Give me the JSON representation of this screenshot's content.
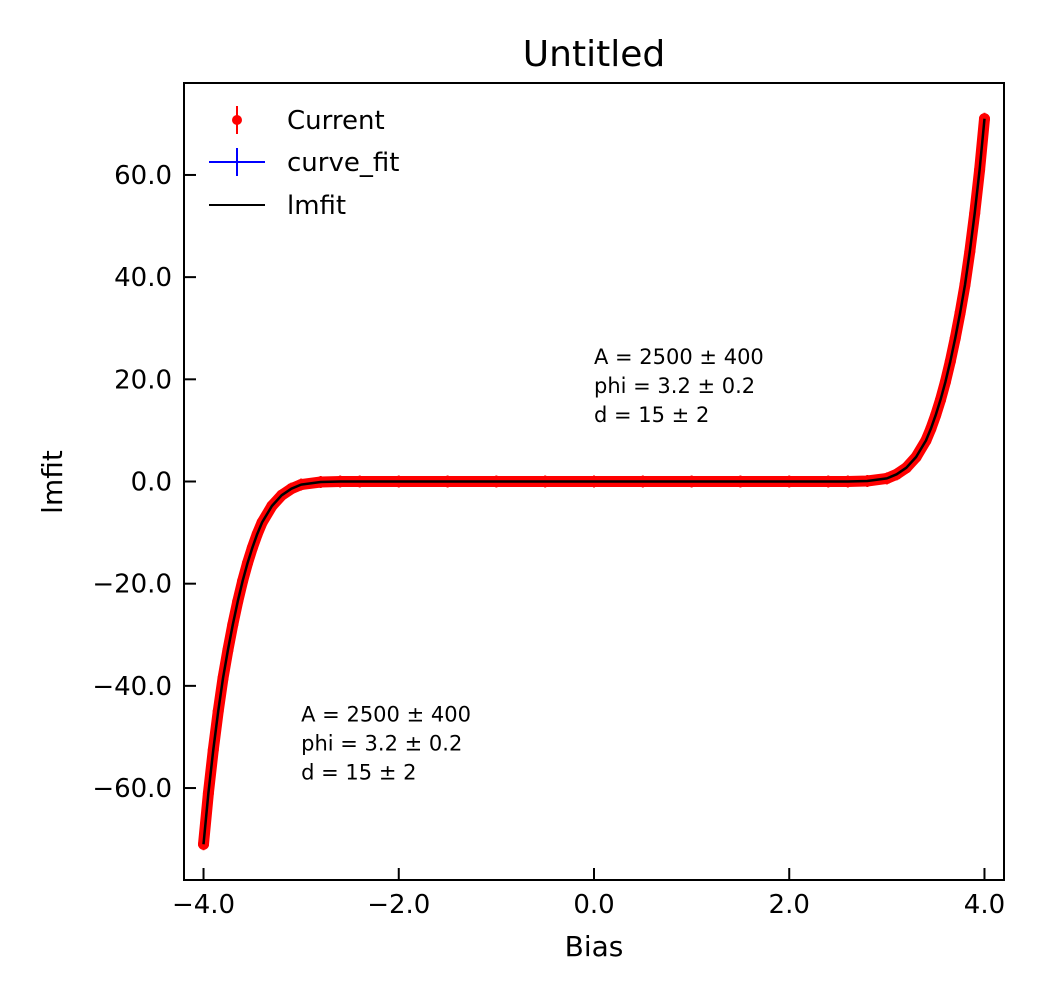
{
  "chart_data": {
    "type": "scatter",
    "title": "Untitled",
    "xlabel": "Bias",
    "ylabel": "lmfit",
    "xlim": [
      -4.2,
      4.2
    ],
    "ylim": [
      -78,
      78
    ],
    "x_ticks": [
      -4.0,
      -2.0,
      0.0,
      2.0,
      4.0
    ],
    "x_tick_labels": [
      "−4.0",
      "−2.0",
      "0.0",
      "2.0",
      "4.0"
    ],
    "y_ticks": [
      -60.0,
      -40.0,
      -20.0,
      0.0,
      20.0,
      40.0,
      60.0
    ],
    "y_tick_labels": [
      "−60.0",
      "−40.0",
      "−20.0",
      "0.0",
      "20.0",
      "40.0",
      "60.0"
    ],
    "grid": false,
    "legend_position": "top-left",
    "series": [
      {
        "name": "Current",
        "style": "points-with-errorbars",
        "color": "#ff0000",
        "x": [
          -4.0,
          -3.95,
          -3.9,
          -3.85,
          -3.8,
          -3.75,
          -3.7,
          -3.65,
          -3.6,
          -3.55,
          -3.5,
          -3.45,
          -3.4,
          -3.3,
          -3.2,
          -3.1,
          -3.0,
          -2.8,
          -2.6,
          -2.4,
          -2.0,
          -1.5,
          -1.0,
          -0.5,
          0.0,
          0.5,
          1.0,
          1.5,
          2.0,
          2.4,
          2.6,
          2.8,
          3.0,
          3.1,
          3.2,
          3.3,
          3.4,
          3.45,
          3.5,
          3.55,
          3.6,
          3.65,
          3.7,
          3.75,
          3.8,
          3.85,
          3.9,
          3.95,
          4.0
        ],
        "y": [
          -71.0,
          -61.0,
          -52.5,
          -45.0,
          -38.5,
          -33.0,
          -28.0,
          -23.5,
          -19.5,
          -16.0,
          -13.0,
          -10.3,
          -8.0,
          -4.8,
          -2.7,
          -1.4,
          -0.6,
          -0.1,
          0.0,
          0.0,
          0.0,
          0.0,
          0.0,
          0.0,
          0.0,
          0.0,
          0.0,
          0.0,
          0.0,
          0.0,
          0.0,
          0.1,
          0.6,
          1.4,
          2.7,
          4.8,
          8.0,
          10.3,
          13.0,
          16.0,
          19.5,
          23.5,
          28.0,
          33.0,
          38.5,
          45.0,
          52.5,
          61.0,
          71.0
        ]
      },
      {
        "name": "curve_fit",
        "style": "line-with-errorbars",
        "color": "#0000ff"
      },
      {
        "name": "lmfit",
        "style": "line",
        "color": "#000000"
      }
    ],
    "annotations": [
      {
        "lines": [
          "A = 2500 ± 400",
          "phi = 3.2 ± 0.2",
          "d = 15 ± 2"
        ],
        "x": 0.0,
        "y": 23.0
      },
      {
        "lines": [
          "A = 2500 ± 400",
          "phi = 3.2 ± 0.2",
          "d = 15 ± 2"
        ],
        "x": -3.0,
        "y": -47.0
      }
    ]
  }
}
